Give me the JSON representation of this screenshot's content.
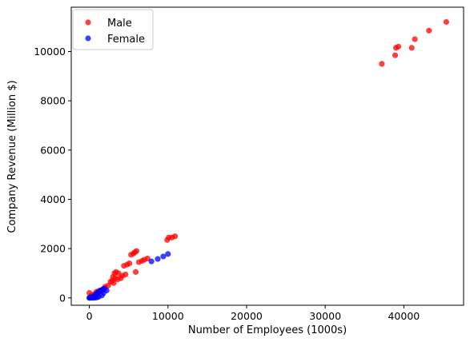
{
  "chart_data": {
    "type": "scatter",
    "xlabel": "Number of Employees (1000s)",
    "ylabel": "Company Revenue (Million $)",
    "xlim": [
      -2300,
      47600
    ],
    "ylim": [
      -300,
      11800
    ],
    "xticks": [
      0,
      10000,
      20000,
      30000,
      40000
    ],
    "yticks": [
      0,
      2000,
      4000,
      6000,
      8000,
      10000
    ],
    "grid": false,
    "legend_position": "top-left",
    "series": [
      {
        "name": "Male",
        "color": "#ff0000",
        "points": [
          [
            37200,
            9500
          ],
          [
            38900,
            9850
          ],
          [
            39000,
            10150
          ],
          [
            39300,
            10200
          ],
          [
            41000,
            10150
          ],
          [
            41400,
            10500
          ],
          [
            43200,
            10850
          ],
          [
            45400,
            11200
          ],
          [
            9900,
            2350
          ],
          [
            10100,
            2450
          ],
          [
            10500,
            2450
          ],
          [
            10900,
            2500
          ],
          [
            5300,
            1750
          ],
          [
            5600,
            1800
          ],
          [
            5800,
            1850
          ],
          [
            6000,
            1900
          ],
          [
            6300,
            1450
          ],
          [
            6700,
            1500
          ],
          [
            7000,
            1550
          ],
          [
            7400,
            1600
          ],
          [
            5900,
            1050
          ],
          [
            4400,
            1300
          ],
          [
            4800,
            1350
          ],
          [
            5100,
            1400
          ],
          [
            3200,
            1000
          ],
          [
            3400,
            1050
          ],
          [
            3700,
            1000
          ],
          [
            4200,
            900
          ],
          [
            4600,
            950
          ],
          [
            3000,
            850
          ],
          [
            3300,
            800
          ],
          [
            3600,
            750
          ],
          [
            4000,
            800
          ],
          [
            2700,
            650
          ],
          [
            2900,
            700
          ],
          [
            3100,
            600
          ],
          [
            2400,
            500
          ],
          [
            2000,
            450
          ],
          [
            1700,
            350
          ],
          [
            1300,
            300
          ],
          [
            900,
            250
          ],
          [
            600,
            150
          ],
          [
            400,
            100
          ],
          [
            200,
            80
          ],
          [
            0,
            200
          ]
        ]
      },
      {
        "name": "Female",
        "color": "#0000ff",
        "points": [
          [
            10000,
            1780
          ],
          [
            9400,
            1680
          ],
          [
            8700,
            1580
          ],
          [
            7900,
            1480
          ],
          [
            2200,
            300
          ],
          [
            1900,
            380
          ],
          [
            1700,
            330
          ],
          [
            1500,
            300
          ],
          [
            1300,
            270
          ],
          [
            1100,
            230
          ],
          [
            1000,
            180
          ],
          [
            900,
            150
          ],
          [
            800,
            120
          ],
          [
            700,
            90
          ],
          [
            600,
            60
          ],
          [
            500,
            40
          ],
          [
            400,
            30
          ],
          [
            300,
            20
          ],
          [
            200,
            15
          ],
          [
            100,
            10
          ],
          [
            50,
            5
          ],
          [
            1800,
            200
          ],
          [
            1600,
            100
          ],
          [
            1200,
            50
          ],
          [
            1000,
            20
          ],
          [
            800,
            10
          ],
          [
            600,
            0
          ],
          [
            300,
            0
          ],
          [
            0,
            0
          ]
        ]
      }
    ]
  }
}
